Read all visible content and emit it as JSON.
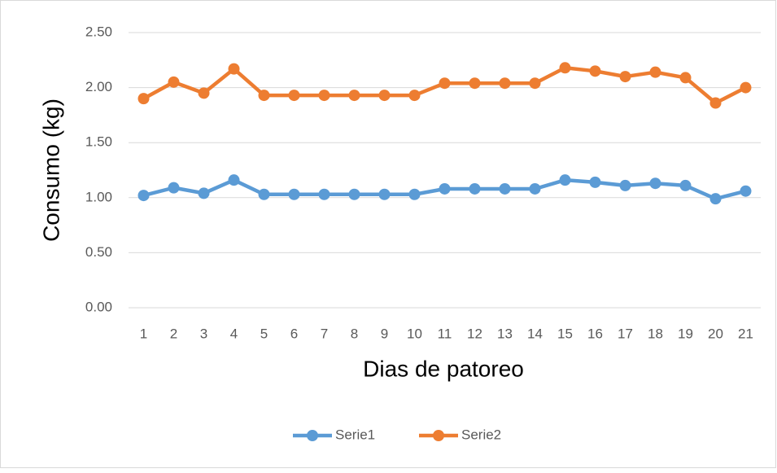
{
  "chart_data": {
    "type": "line",
    "categories": [
      "1",
      "2",
      "3",
      "4",
      "5",
      "6",
      "7",
      "8",
      "9",
      "10",
      "11",
      "12",
      "13",
      "14",
      "15",
      "16",
      "17",
      "18",
      "19",
      "20",
      "21"
    ],
    "series": [
      {
        "name": "Serie1",
        "color": "#5b9bd5",
        "values": [
          1.02,
          1.09,
          1.04,
          1.16,
          1.03,
          1.03,
          1.03,
          1.03,
          1.03,
          1.03,
          1.08,
          1.08,
          1.08,
          1.08,
          1.16,
          1.14,
          1.11,
          1.13,
          1.11,
          0.99,
          1.06
        ]
      },
      {
        "name": "Serie2",
        "color": "#ed7d31",
        "values": [
          1.9,
          2.05,
          1.95,
          2.17,
          1.93,
          1.93,
          1.93,
          1.93,
          1.93,
          1.93,
          2.04,
          2.04,
          2.04,
          2.04,
          2.18,
          2.15,
          2.1,
          2.14,
          2.09,
          1.86,
          2.0
        ]
      }
    ],
    "x_label": "Dias de patoreo",
    "y_label": "Consumo (kg)",
    "ylim": [
      0,
      2.5
    ],
    "yticks": [
      {
        "value": 0,
        "label": "0.00"
      },
      {
        "value": 0.5,
        "label": "0.50"
      },
      {
        "value": 1,
        "label": "1.00"
      },
      {
        "value": 1.5,
        "label": "1.50"
      },
      {
        "value": 2,
        "label": "2.00"
      },
      {
        "value": 2.5,
        "label": "2.50"
      }
    ],
    "grid": true,
    "legend": "bottom"
  }
}
